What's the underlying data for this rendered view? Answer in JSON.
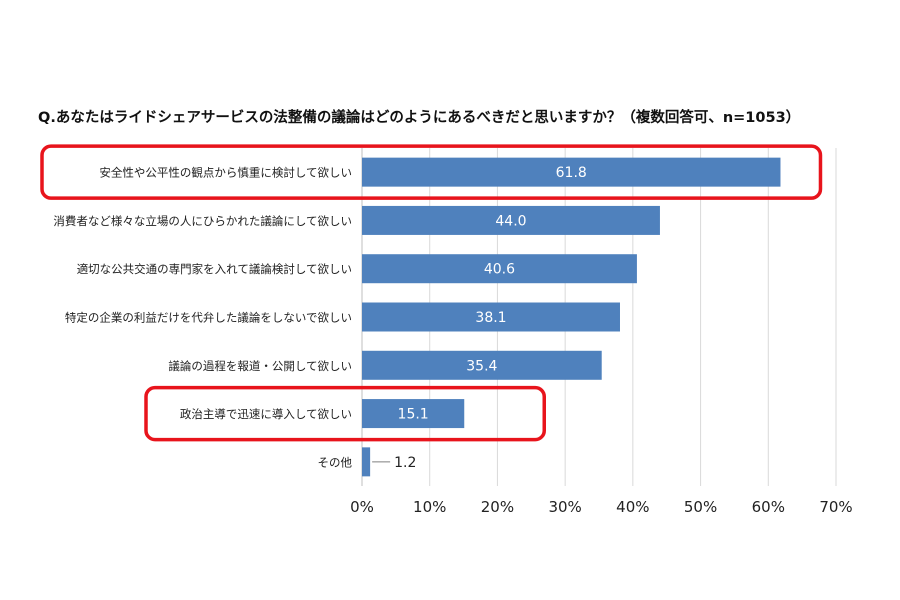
{
  "colors": {
    "bar": "#4f81bd",
    "bar_label": "#ffffff",
    "highlight": "#e8141c",
    "grid": "#d9d9d9",
    "text": "#222222"
  },
  "chart_data": {
    "type": "bar",
    "orientation": "horizontal",
    "title": "Q.あなたはライドシェアサービスの法整備の議論はどのようにあるべきだと思いますか？（複数回答可、n=1053）",
    "xlabel": "",
    "ylabel": "",
    "categories": [
      "安全性や公平性の観点から慎重に検討して欲しい",
      "消費者など様々な立場の人にひらかれた議論にして欲しい",
      "適切な公共交通の専門家を入れて議論検討して欲しい",
      "特定の企業の利益だけを代弁した議論をしないで欲しい",
      "議論の過程を報道・公開して欲しい",
      "政治主導で迅速に導入して欲しい",
      "その他"
    ],
    "values": [
      61.8,
      44.0,
      40.6,
      38.1,
      35.4,
      15.1,
      1.2
    ],
    "value_labels": [
      "61.8",
      "44.0",
      "40.6",
      "38.1",
      "35.4",
      "15.1",
      "1.2"
    ],
    "xlim": [
      0,
      70
    ],
    "xticks": [
      0,
      10,
      20,
      30,
      40,
      50,
      60,
      70
    ],
    "xtick_labels": [
      "0%",
      "10%",
      "20%",
      "30%",
      "40%",
      "50%",
      "60%",
      "70%"
    ],
    "grid": true,
    "highlighted_categories": [
      0,
      5
    ]
  }
}
